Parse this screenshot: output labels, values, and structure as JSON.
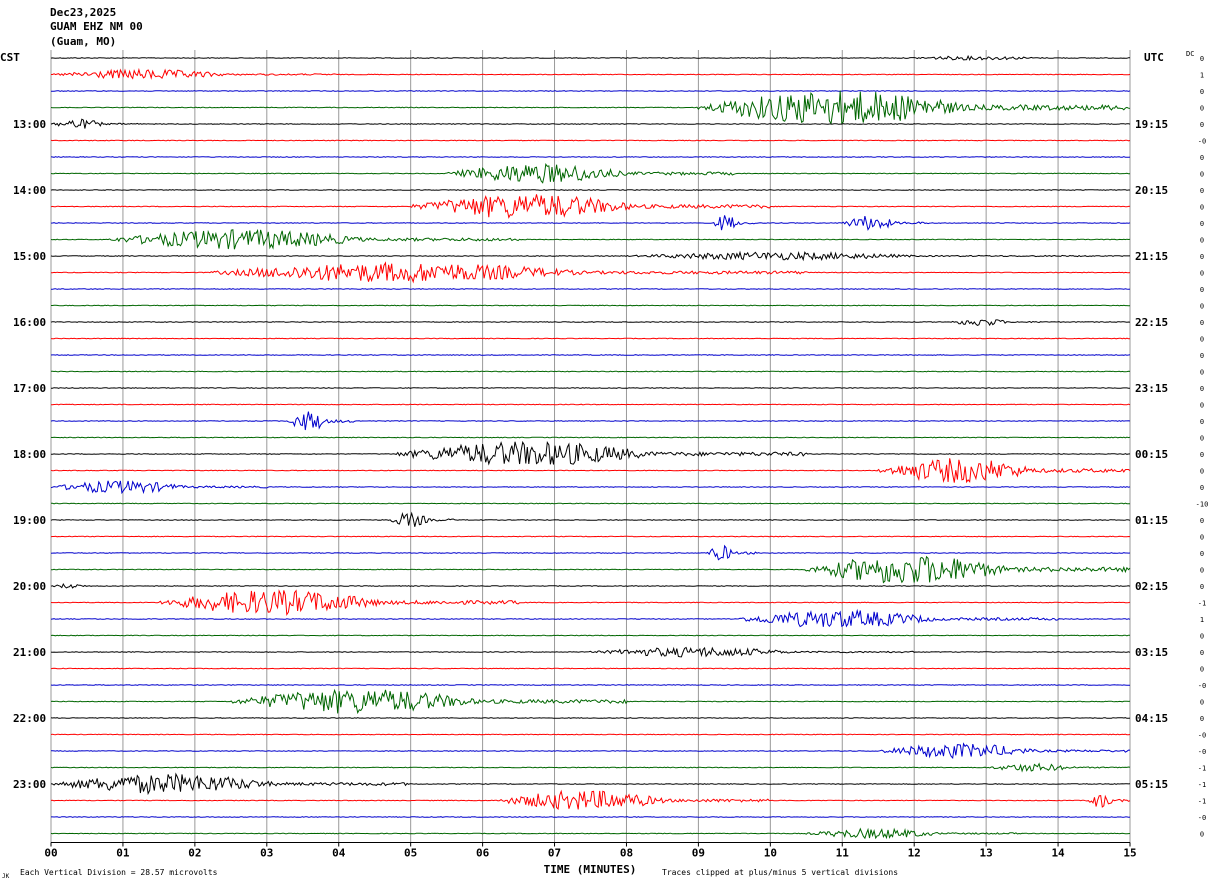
{
  "header": {
    "date": "Dec23,2025",
    "station": "GUAM EHZ NM 00",
    "location": "(Guam, MO)"
  },
  "axis": {
    "left_label": "CST",
    "right_label": "UTC",
    "dc_label": "DC",
    "xlabel": "TIME (MINUTES)"
  },
  "footer": {
    "division": "Each Vertical Division =   28.57 microvolts",
    "clipped": "Traces clipped at plus/minus 5 vertical divisions",
    "corner": "JK"
  },
  "chart_data": {
    "type": "line",
    "xlim": [
      0,
      15
    ],
    "x_ticks": [
      "00",
      "01",
      "02",
      "03",
      "04",
      "05",
      "06",
      "07",
      "08",
      "09",
      "10",
      "11",
      "12",
      "13",
      "14",
      "15"
    ],
    "grid": true,
    "trace_colors": [
      "#000000",
      "#ff0000",
      "#0000cc",
      "#006600"
    ],
    "left_hour_labels": [
      "13:00",
      "14:00",
      "15:00",
      "16:00",
      "17:00",
      "18:00",
      "19:00",
      "20:00",
      "21:00",
      "22:00",
      "23:00"
    ],
    "right_hour_labels": [
      "19:15",
      "20:15",
      "21:15",
      "22:15",
      "23:15",
      "00:15",
      "01:15",
      "02:15",
      "03:15",
      "04:15",
      "05:15"
    ],
    "trace_count": 48,
    "dc_offsets": [
      "0",
      "1",
      "0",
      "0",
      "0",
      "-0",
      "0",
      "0",
      "0",
      "0",
      "0",
      "0",
      "0",
      "0",
      "0",
      "0",
      "0",
      "0",
      "0",
      "0",
      "0",
      "0",
      "0",
      "0",
      "0",
      "0",
      "0",
      "-10",
      "0",
      "0",
      "0",
      "0",
      "0",
      "-1",
      "1",
      "0",
      "0",
      "0",
      "-0",
      "0",
      "0",
      "-0",
      "-0",
      "-1",
      "-1",
      "-1",
      "-0",
      "0"
    ],
    "events": [
      {
        "trace": 0,
        "start": 11.8,
        "end": 15.0,
        "amp": 0.4
      },
      {
        "trace": 1,
        "start": 0.0,
        "end": 4.0,
        "amp": 1.0
      },
      {
        "trace": 3,
        "start": 9.0,
        "end": 15.0,
        "amp": 3.5
      },
      {
        "trace": 4,
        "start": 0.0,
        "end": 1.2,
        "amp": 1.0
      },
      {
        "trace": 7,
        "start": 5.5,
        "end": 9.5,
        "amp": 2.0
      },
      {
        "trace": 9,
        "start": 5.0,
        "end": 10.0,
        "amp": 2.5
      },
      {
        "trace": 10,
        "start": 9.2,
        "end": 9.8,
        "amp": 1.8
      },
      {
        "trace": 10,
        "start": 11.0,
        "end": 12.2,
        "amp": 1.5
      },
      {
        "trace": 11,
        "start": 0.8,
        "end": 6.5,
        "amp": 2.0
      },
      {
        "trace": 12,
        "start": 8.0,
        "end": 14.5,
        "amp": 0.8
      },
      {
        "trace": 13,
        "start": 2.2,
        "end": 10.5,
        "amp": 2.0
      },
      {
        "trace": 16,
        "start": 12.5,
        "end": 13.8,
        "amp": 0.8
      },
      {
        "trace": 22,
        "start": 3.3,
        "end": 4.2,
        "amp": 2.0
      },
      {
        "trace": 24,
        "start": 4.8,
        "end": 10.5,
        "amp": 2.5
      },
      {
        "trace": 25,
        "start": 11.5,
        "end": 15.0,
        "amp": 2.5
      },
      {
        "trace": 26,
        "start": 0.0,
        "end": 3.0,
        "amp": 1.3
      },
      {
        "trace": 28,
        "start": 4.7,
        "end": 5.6,
        "amp": 1.5
      },
      {
        "trace": 30,
        "start": 9.1,
        "end": 9.8,
        "amp": 1.5
      },
      {
        "trace": 31,
        "start": 10.5,
        "end": 15.0,
        "amp": 3.0
      },
      {
        "trace": 32,
        "start": 0.0,
        "end": 0.8,
        "amp": 0.5
      },
      {
        "trace": 33,
        "start": 1.5,
        "end": 6.5,
        "amp": 2.5
      },
      {
        "trace": 34,
        "start": 9.5,
        "end": 14.0,
        "amp": 1.8
      },
      {
        "trace": 36,
        "start": 7.5,
        "end": 12.0,
        "amp": 1.0
      },
      {
        "trace": 39,
        "start": 2.5,
        "end": 8.0,
        "amp": 2.5
      },
      {
        "trace": 42,
        "start": 11.5,
        "end": 15.0,
        "amp": 1.5
      },
      {
        "trace": 43,
        "start": 13.0,
        "end": 15.0,
        "amp": 0.8
      },
      {
        "trace": 44,
        "start": 0.0,
        "end": 5.0,
        "amp": 2.0
      },
      {
        "trace": 45,
        "start": 6.2,
        "end": 10.0,
        "amp": 2.0
      },
      {
        "trace": 45,
        "start": 14.4,
        "end": 15.0,
        "amp": 1.5
      },
      {
        "trace": 47,
        "start": 10.5,
        "end": 13.5,
        "amp": 1.0
      }
    ]
  }
}
